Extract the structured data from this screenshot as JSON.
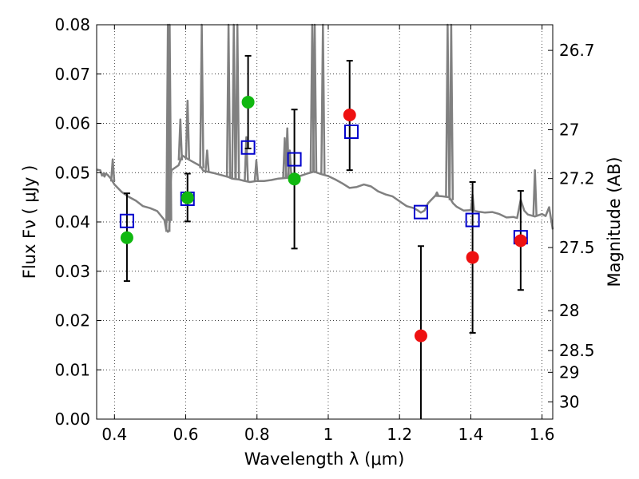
{
  "chart_data": {
    "type": "scatter",
    "xlabel": "Wavelength  λ (μm)",
    "ylabel": "Flux  Fν  ( μJy )",
    "y2label": "Magnitude (AB)",
    "xlim": [
      0.35,
      1.63
    ],
    "ylim": [
      0.0,
      0.08
    ],
    "grid": true,
    "xticks": [
      0.4,
      0.6,
      0.8,
      1.0,
      1.2,
      1.4,
      1.6
    ],
    "xtick_labels": [
      "0.4",
      "0.6",
      "0.8",
      "1",
      "1.2",
      "1.4",
      "1.6"
    ],
    "yticks": [
      0.0,
      0.01,
      0.02,
      0.03,
      0.04,
      0.05,
      0.06,
      0.07,
      0.08
    ],
    "ytick_labels": [
      "0.00",
      "0.01",
      "0.02",
      "0.03",
      "0.04",
      "0.05",
      "0.06",
      "0.07",
      "0.08"
    ],
    "mag_ticks": [
      {
        "flux": 0.0748,
        "label": "26.7"
      },
      {
        "flux": 0.0587,
        "label": "27"
      },
      {
        "flux": 0.0488,
        "label": "27.2"
      },
      {
        "flux": 0.0348,
        "label": "27.5"
      },
      {
        "flux": 0.022,
        "label": "28"
      },
      {
        "flux": 0.0139,
        "label": "28.5"
      },
      {
        "flux": 0.0095,
        "label": "29"
      },
      {
        "flux": 0.0035,
        "label": "30"
      }
    ],
    "observed_green": [
      {
        "x": 0.435,
        "y": 0.0368,
        "err_lo": 0.028,
        "err_hi": 0.0458
      },
      {
        "x": 0.605,
        "y": 0.0449,
        "err_lo": 0.0401,
        "err_hi": 0.0498
      },
      {
        "x": 0.775,
        "y": 0.0643,
        "err_lo": 0.0549,
        "err_hi": 0.0737
      },
      {
        "x": 0.905,
        "y": 0.0487,
        "err_lo": 0.0346,
        "err_hi": 0.0628
      }
    ],
    "observed_red": [
      {
        "x": 1.06,
        "y": 0.0617,
        "err_lo": 0.0505,
        "err_hi": 0.0727
      },
      {
        "x": 1.26,
        "y": 0.0169,
        "err_lo": -0.002,
        "err_hi": 0.0351
      },
      {
        "x": 1.405,
        "y": 0.0328,
        "err_lo": 0.0175,
        "err_hi": 0.0481
      },
      {
        "x": 1.54,
        "y": 0.0362,
        "err_lo": 0.0262,
        "err_hi": 0.0463
      }
    ],
    "model_squares": [
      {
        "x": 0.435,
        "y": 0.0402
      },
      {
        "x": 0.605,
        "y": 0.0447
      },
      {
        "x": 0.775,
        "y": 0.0551
      },
      {
        "x": 0.905,
        "y": 0.0527
      },
      {
        "x": 1.065,
        "y": 0.0583
      },
      {
        "x": 1.26,
        "y": 0.042
      },
      {
        "x": 1.405,
        "y": 0.0404
      },
      {
        "x": 1.54,
        "y": 0.0369
      }
    ],
    "template_spectrum": {
      "x": [
        0.35,
        0.36,
        0.365,
        0.37,
        0.38,
        0.39,
        0.4,
        0.42,
        0.44,
        0.46,
        0.48,
        0.5,
        0.52,
        0.54,
        0.545,
        0.55,
        0.553,
        0.555,
        0.557,
        0.56,
        0.57,
        0.58,
        0.59,
        0.6,
        0.62,
        0.64,
        0.645,
        0.65,
        0.66,
        0.68,
        0.7,
        0.72,
        0.73,
        0.75,
        0.76,
        0.78,
        0.8,
        0.82,
        0.84,
        0.86,
        0.88,
        0.9,
        0.92,
        0.94,
        0.96,
        0.98,
        1.0,
        1.02,
        1.04,
        1.06,
        1.08,
        1.1,
        1.12,
        1.14,
        1.16,
        1.18,
        1.2,
        1.22,
        1.24,
        1.25,
        1.26,
        1.27,
        1.28,
        1.3,
        1.32,
        1.33,
        1.34,
        1.35,
        1.36,
        1.38,
        1.4,
        1.42,
        1.44,
        1.46,
        1.48,
        1.5,
        1.52,
        1.53,
        1.54,
        1.55,
        1.56,
        1.58,
        1.6,
        1.61,
        1.62,
        1.63
      ],
      "y": [
        0.0506,
        0.0505,
        0.0494,
        0.0499,
        0.0496,
        0.0488,
        0.0476,
        0.0461,
        0.0451,
        0.0443,
        0.0432,
        0.0428,
        0.0422,
        0.0404,
        0.0385,
        0.038,
        0.0382,
        0.0402,
        0.047,
        0.0505,
        0.051,
        0.0515,
        0.0535,
        0.053,
        0.0522,
        0.0514,
        0.0509,
        0.0503,
        0.0502,
        0.0499,
        0.0495,
        0.0491,
        0.0488,
        0.0486,
        0.0484,
        0.0481,
        0.0483,
        0.0483,
        0.0485,
        0.0488,
        0.0489,
        0.0491,
        0.0493,
        0.0498,
        0.0502,
        0.0497,
        0.0493,
        0.0486,
        0.0478,
        0.0469,
        0.0471,
        0.0476,
        0.0472,
        0.0462,
        0.0456,
        0.0452,
        0.0442,
        0.0432,
        0.0428,
        0.0424,
        0.0419,
        0.0423,
        0.0438,
        0.0453,
        0.0452,
        0.0451,
        0.045,
        0.0438,
        0.0431,
        0.0423,
        0.0424,
        0.0421,
        0.0419,
        0.042,
        0.0416,
        0.0409,
        0.041,
        0.0408,
        0.0445,
        0.0423,
        0.0415,
        0.0411,
        0.0416,
        0.0412,
        0.043,
        0.0385
      ]
    },
    "emission_lines": [
      {
        "x": 0.372,
        "top": 0.0492
      },
      {
        "x": 0.395,
        "top": 0.0527
      },
      {
        "x": 0.55,
        "top": 0.0805
      },
      {
        "x": 0.555,
        "top": 0.0805
      },
      {
        "x": 0.585,
        "top": 0.0608
      },
      {
        "x": 0.605,
        "top": 0.0646
      },
      {
        "x": 0.645,
        "top": 0.0805
      },
      {
        "x": 0.66,
        "top": 0.0545
      },
      {
        "x": 0.72,
        "top": 0.0805
      },
      {
        "x": 0.735,
        "top": 0.0805
      },
      {
        "x": 0.745,
        "top": 0.0805
      },
      {
        "x": 0.77,
        "top": 0.0572
      },
      {
        "x": 0.798,
        "top": 0.0525
      },
      {
        "x": 0.878,
        "top": 0.057
      },
      {
        "x": 0.885,
        "top": 0.059
      },
      {
        "x": 0.892,
        "top": 0.0545
      },
      {
        "x": 0.955,
        "top": 0.0805
      },
      {
        "x": 0.962,
        "top": 0.0805
      },
      {
        "x": 0.985,
        "top": 0.0805
      },
      {
        "x": 1.305,
        "top": 0.046
      },
      {
        "x": 1.335,
        "top": 0.0805
      },
      {
        "x": 1.345,
        "top": 0.0805
      },
      {
        "x": 1.405,
        "top": 0.0455
      },
      {
        "x": 1.58,
        "top": 0.0505
      }
    ],
    "colors": {
      "green_points": "#10b810",
      "red_points": "#ee1111",
      "model_squares": "#0000cc",
      "spectrum": "#808080",
      "errorbars": "#000000"
    }
  }
}
